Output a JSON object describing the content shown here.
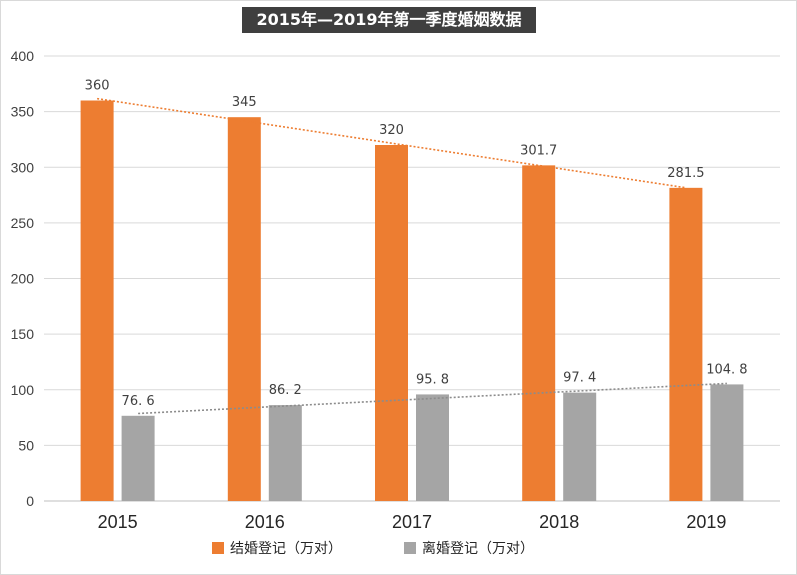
{
  "chart_data": {
    "type": "bar",
    "title": "2015年—2019年第一季度婚姻数据",
    "categories": [
      "2015",
      "2016",
      "2017",
      "2018",
      "2019"
    ],
    "series": [
      {
        "name": "结婚登记（万对）",
        "values": [
          360,
          345,
          320,
          301.7,
          281.5
        ],
        "labels": [
          "360",
          "345",
          "320",
          "301.7",
          "281.5"
        ],
        "color": "#ED7D31",
        "trendline": "linear"
      },
      {
        "name": "离婚登记（万对）",
        "values": [
          76.6,
          86.2,
          95.8,
          97.4,
          104.8
        ],
        "labels": [
          "76. 6",
          "86. 2",
          "95. 8",
          "97. 4",
          "104. 8"
        ],
        "color": "#A5A5A5",
        "trendline": "linear"
      }
    ],
    "yticks": [
      "0",
      "50",
      "100",
      "150",
      "200",
      "250",
      "300",
      "350",
      "400"
    ],
    "ylim": [
      0,
      400
    ],
    "grid": true,
    "legend": "bottom"
  }
}
